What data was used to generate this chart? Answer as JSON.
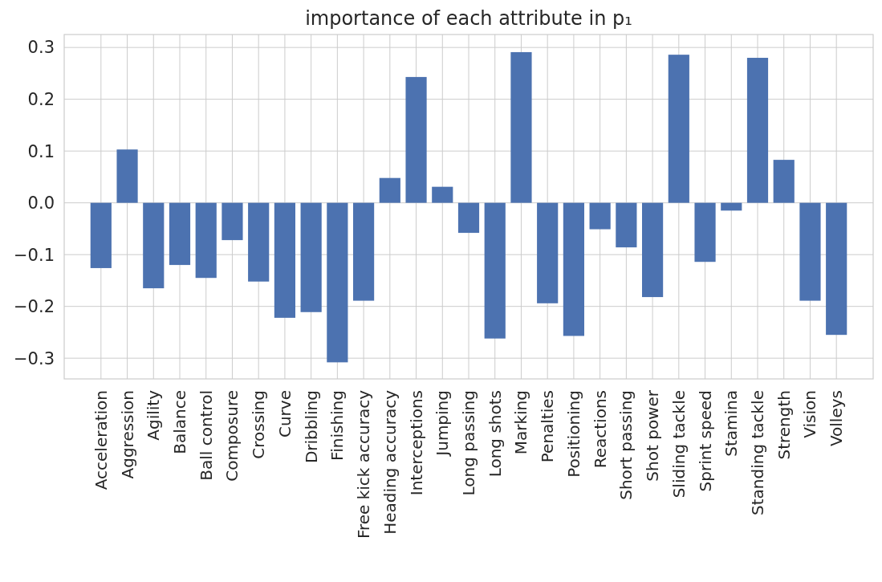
{
  "chart_data": {
    "type": "bar",
    "title": "importance of each attribute in p₁",
    "categories": [
      "Acceleration",
      "Aggression",
      "Agility",
      "Balance",
      "Ball control",
      "Composure",
      "Crossing",
      "Curve",
      "Dribbling",
      "Finishing",
      "Free kick accuracy",
      "Heading accuracy",
      "Interceptions",
      "Jumping",
      "Long passing",
      "Long shots",
      "Marking",
      "Penalties",
      "Positioning",
      "Reactions",
      "Short passing",
      "Shot power",
      "Sliding tackle",
      "Sprint speed",
      "Stamina",
      "Standing tackle",
      "Strength",
      "Vision",
      "Volleys"
    ],
    "values": [
      -0.126,
      0.103,
      -0.165,
      -0.12,
      -0.145,
      -0.072,
      -0.152,
      -0.222,
      -0.211,
      -0.308,
      -0.189,
      0.048,
      0.243,
      0.031,
      -0.058,
      -0.262,
      0.291,
      -0.194,
      -0.257,
      -0.051,
      -0.086,
      -0.182,
      0.286,
      -0.114,
      -0.015,
      0.28,
      0.083,
      -0.189,
      -0.255
    ],
    "color": "#4c72b0",
    "ylim": [
      -0.34,
      0.325
    ],
    "yticks": [
      {
        "value": -0.3,
        "label": "−0.3"
      },
      {
        "value": -0.2,
        "label": "−0.2"
      },
      {
        "value": -0.1,
        "label": "−0.1"
      },
      {
        "value": 0,
        "label": "0.0"
      },
      {
        "value": 0.1,
        "label": "0.1"
      },
      {
        "value": 0.2,
        "label": "0.2"
      },
      {
        "value": 0.3,
        "label": "0.3"
      }
    ],
    "grid": true
  }
}
